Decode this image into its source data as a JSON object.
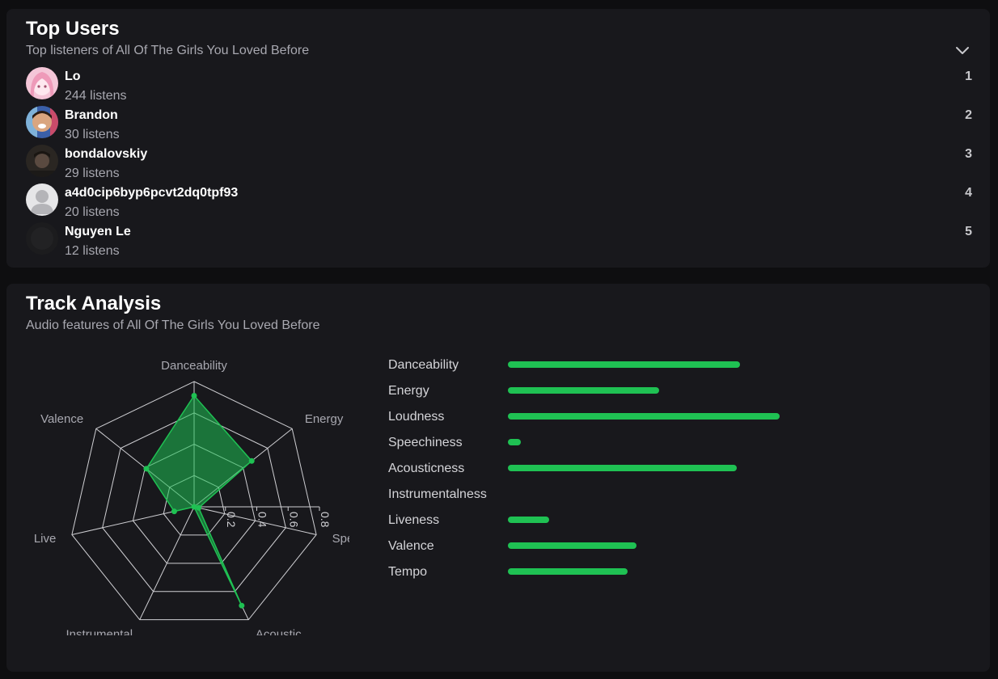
{
  "top_users": {
    "title": "Top Users",
    "subtitle": "Top listeners of All Of The Girls You Loved Before",
    "users": [
      {
        "name": "Lo",
        "listens": "244 listens",
        "rank": "1"
      },
      {
        "name": "Brandon",
        "listens": "30 listens",
        "rank": "2"
      },
      {
        "name": "bondalovskiy",
        "listens": "29 listens",
        "rank": "3"
      },
      {
        "name": "a4d0cip6byp6pcvt2dq0tpf93",
        "listens": "20 listens",
        "rank": "4"
      },
      {
        "name": "Nguyen Le",
        "listens": "12 listens",
        "rank": "5"
      }
    ]
  },
  "track_analysis": {
    "title": "Track Analysis",
    "subtitle": "Audio features of All Of The Girls You Loved Before",
    "radar": {
      "axes": [
        "Danceability",
        "Energy",
        "Speec",
        "Acoustic",
        "Instrumental",
        "Live",
        "Valence"
      ],
      "values": [
        0.71,
        0.47,
        0.03,
        0.7,
        0.0,
        0.13,
        0.39
      ],
      "ticks": [
        "0.2",
        "0.4",
        "0.6",
        "0.8"
      ],
      "max": 0.8
    },
    "features": [
      {
        "label": "Danceability",
        "value": 0.574
      },
      {
        "label": "Energy",
        "value": 0.374
      },
      {
        "label": "Loudness",
        "value": 0.672
      },
      {
        "label": "Speechiness",
        "value": 0.032
      },
      {
        "label": "Acousticness",
        "value": 0.566
      },
      {
        "label": "Instrumentalness",
        "value": 0.0
      },
      {
        "label": "Liveness",
        "value": 0.102
      },
      {
        "label": "Valence",
        "value": 0.318
      },
      {
        "label": "Tempo",
        "value": 0.296
      }
    ]
  },
  "colors": {
    "accent": "#1fc153",
    "card": "#18181c",
    "background": "#0e0e10"
  }
}
